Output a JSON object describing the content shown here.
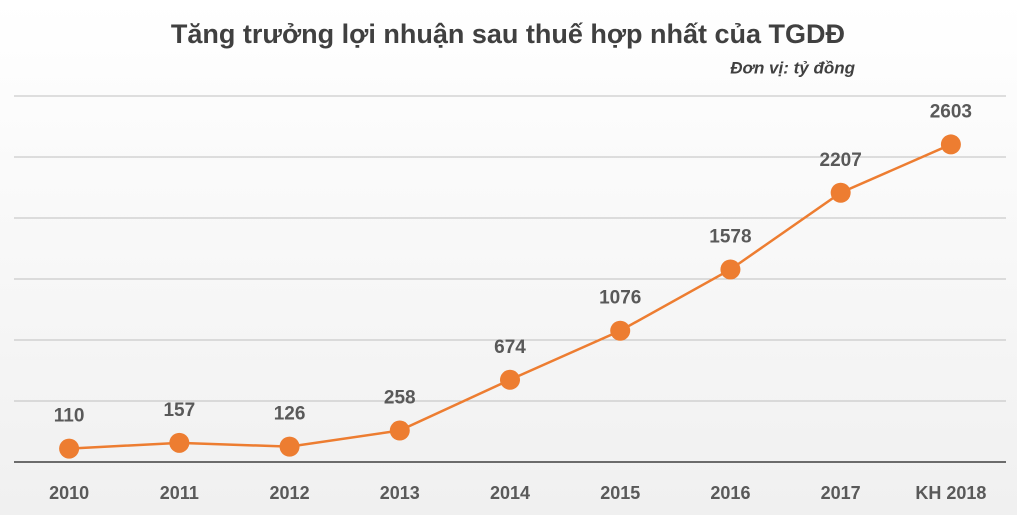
{
  "chart_data": {
    "type": "line",
    "title": "Tăng trưởng lợi nhuận sau thuế hợp nhất của TGDĐ",
    "subtitle": "Đơn vị: tỷ đồng",
    "categories": [
      "2010",
      "2011",
      "2012",
      "2013",
      "2014",
      "2015",
      "2016",
      "2017",
      "KH 2018"
    ],
    "values": [
      110,
      157,
      126,
      258,
      674,
      1076,
      1578,
      2207,
      2603
    ],
    "color": "#ed7d31",
    "ylim": [
      0,
      3000
    ],
    "yticks": [
      0,
      500,
      1000,
      1500,
      2000,
      2500,
      3000
    ],
    "grid": true
  }
}
